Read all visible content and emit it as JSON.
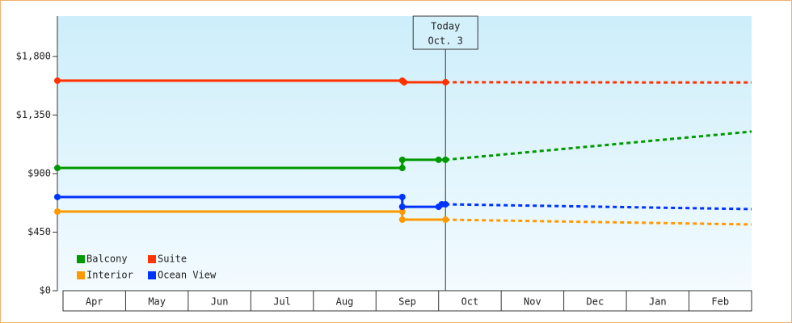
{
  "chart_data": {
    "type": "line",
    "categories": [
      "Apr",
      "May",
      "Jun",
      "Jul",
      "Aug",
      "Sep",
      "Oct",
      "Nov",
      "Dec",
      "Jan",
      "Feb"
    ],
    "xlim": [
      -0.09,
      11.0
    ],
    "ylim": [
      0,
      2110
    ],
    "yticks": [
      {
        "value": 0,
        "label": "$0"
      },
      {
        "value": 450,
        "label": "$450"
      },
      {
        "value": 900,
        "label": "$900"
      },
      {
        "value": 1350,
        "label": "$1,350"
      },
      {
        "value": 1800,
        "label": "$1,800"
      }
    ],
    "annotation": {
      "lines": [
        "Today",
        "Oct. 3"
      ],
      "x": 6.11
    },
    "series": [
      {
        "name": "Balcony",
        "color": "#009900",
        "x": [
          -0.09,
          5.42,
          5.42,
          6.0,
          6.11
        ],
        "values": [
          943,
          943,
          1006,
          1006,
          1006
        ],
        "forecast_x": [
          6.11,
          11.0
        ],
        "forecast_values": [
          1006,
          1223
        ]
      },
      {
        "name": "Suite",
        "color": "#ff3300",
        "x": [
          -0.09,
          5.42,
          5.45,
          6.11
        ],
        "values": [
          1614,
          1614,
          1602,
          1602
        ],
        "forecast_x": [
          6.11,
          11.0
        ],
        "forecast_values": [
          1602,
          1600
        ]
      },
      {
        "name": "Interior",
        "color": "#ff9900",
        "x": [
          -0.09,
          5.42,
          5.42,
          6.11
        ],
        "values": [
          608,
          608,
          546,
          546
        ],
        "forecast_x": [
          6.11,
          11.0
        ],
        "forecast_values": [
          546,
          509
        ]
      },
      {
        "name": "Ocean View",
        "color": "#0033ff",
        "x": [
          -0.09,
          5.42,
          5.42,
          6.0,
          6.05,
          6.11
        ],
        "values": [
          720,
          720,
          645,
          645,
          664,
          664
        ],
        "forecast_x": [
          6.11,
          11.0
        ],
        "forecast_values": [
          664,
          627
        ]
      }
    ]
  }
}
